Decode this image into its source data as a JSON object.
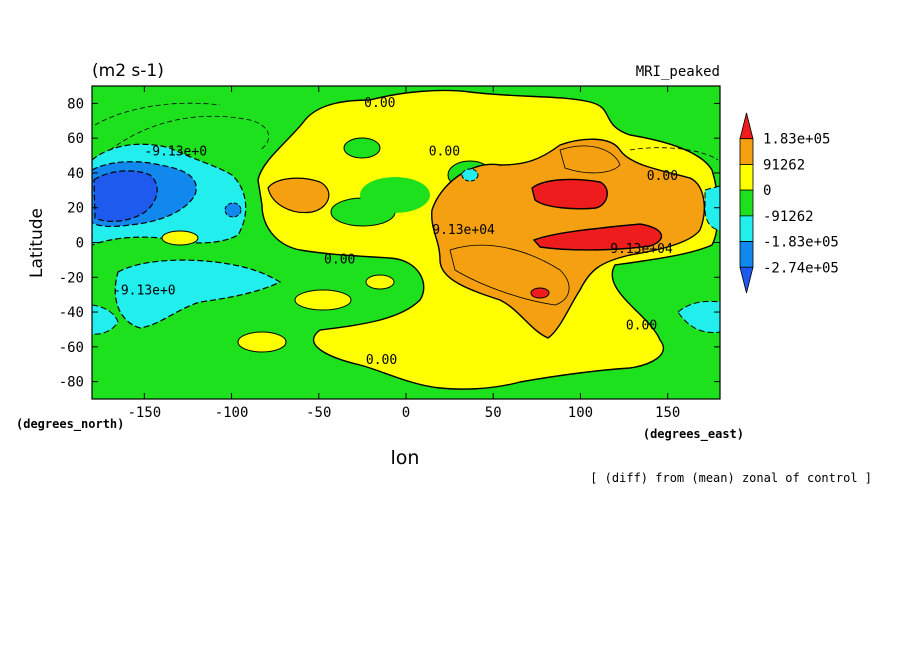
{
  "chart_data": {
    "type": "heatmap",
    "title": "(m2 s-1)",
    "subtitle": "MRI_peaked",
    "xlabel": "lon",
    "ylabel": "Latitude",
    "x_units": "(degrees_east)",
    "y_units": "(degrees_north)",
    "footnote": "[ (diff) from (mean) zonal of control ]",
    "xlim": [
      -180,
      180
    ],
    "ylim": [
      -90,
      90
    ],
    "x_ticks": [
      -150,
      -100,
      -50,
      0,
      50,
      100,
      150
    ],
    "y_ticks": [
      80,
      60,
      40,
      20,
      0,
      -20,
      -40,
      -60,
      -80
    ],
    "x_tick_labels": [
      "-150",
      "-100",
      "-50",
      "0",
      "50",
      "100",
      "150"
    ],
    "y_tick_labels": [
      "80",
      "60",
      "40",
      "20",
      "0",
      "-20",
      "-40",
      "-60",
      "-80"
    ],
    "legend": {
      "placement": "right",
      "labels": [
        "1.83e+05",
        "91262",
        "0",
        "-91262",
        "-1.83e+05",
        "-2.74e+05"
      ],
      "levels": [
        183000,
        91262,
        0,
        -91262,
        -183000,
        -274000
      ],
      "colors": [
        "#ee1c1c",
        "#f5a011",
        "#ffff00",
        "#1ee11e",
        "#22eeee",
        "#1188ee",
        "#1e5aee"
      ]
    },
    "contour_labels": [
      {
        "text": "0.00",
        "lon": -15,
        "lat": 78
      },
      {
        "text": "0.00",
        "lon": 22,
        "lat": 50
      },
      {
        "text": "0.00",
        "lon": 147,
        "lat": 36
      },
      {
        "text": "0.00",
        "lon": -38,
        "lat": -12
      },
      {
        "text": "0.00",
        "lon": 135,
        "lat": -50
      },
      {
        "text": "0.00",
        "lon": -14,
        "lat": -70
      },
      {
        "text": "-9.13e+0",
        "lon": -132,
        "lat": 50
      },
      {
        "text": "-9.13e+0",
        "lon": -150,
        "lat": -30
      },
      {
        "text": "9.13e+04",
        "lon": 33,
        "lat": 5
      },
      {
        "text": "9.13e+04",
        "lon": 135,
        "lat": -6
      }
    ],
    "regions": [
      {
        "name": "region-positive-large",
        "lon": [
          40,
          150
        ],
        "lat": [
          -35,
          55
        ],
        "color_index": 1
      },
      {
        "name": "region-positive-max-north",
        "lon": [
          72,
          110
        ],
        "lat": [
          18,
          35
        ],
        "color_index": 0
      },
      {
        "name": "region-positive-max-equator",
        "lon": [
          72,
          145
        ],
        "lat": [
          -3,
          10
        ],
        "color_index": 0
      },
      {
        "name": "region-negative-northwest",
        "lon": [
          -180,
          -118
        ],
        "lat": [
          5,
          48
        ],
        "color_index": 5
      },
      {
        "name": "region-negative-southwest",
        "lon": [
          -175,
          -125
        ],
        "lat": [
          -50,
          -10
        ],
        "color_index": 4
      }
    ]
  }
}
